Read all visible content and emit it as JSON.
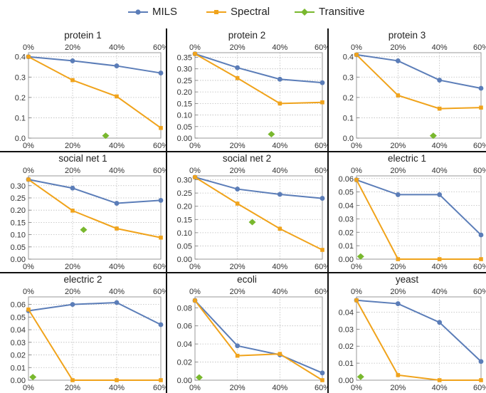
{
  "legend": [
    {
      "name": "MILS",
      "color": "#5b7db8",
      "marker": "circle"
    },
    {
      "name": "Spectral",
      "color": "#f0a31b",
      "marker": "square"
    },
    {
      "name": "Transitive",
      "color": "#79b82e",
      "marker": "diamond"
    }
  ],
  "chart_data": [
    {
      "type": "line",
      "title": "protein 1",
      "x": [
        "0%",
        "20%",
        "40%",
        "60%"
      ],
      "ylim": [
        0,
        0.42
      ],
      "yticks": [
        "0.0",
        "0.1",
        "0.2",
        "0.3",
        "0.4"
      ],
      "ytick_values": [
        0,
        0.1,
        0.2,
        0.3,
        0.4
      ],
      "series": [
        {
          "name": "MILS",
          "values": [
            0.4,
            0.38,
            0.355,
            0.32
          ]
        },
        {
          "name": "Spectral",
          "values": [
            0.4,
            0.285,
            0.205,
            0.05
          ]
        }
      ],
      "transitive": {
        "x": "35%",
        "y": 0.012
      }
    },
    {
      "type": "line",
      "title": "protein 2",
      "x": [
        "0%",
        "20%",
        "40%",
        "60%"
      ],
      "ylim": [
        0,
        0.37
      ],
      "yticks": [
        "0.00",
        "0.05",
        "0.10",
        "0.15",
        "0.20",
        "0.25",
        "0.30",
        "0.35"
      ],
      "ytick_values": [
        0,
        0.05,
        0.1,
        0.15,
        0.2,
        0.25,
        0.3,
        0.35
      ],
      "series": [
        {
          "name": "MILS",
          "values": [
            0.365,
            0.305,
            0.255,
            0.24
          ]
        },
        {
          "name": "Spectral",
          "values": [
            0.365,
            0.26,
            0.15,
            0.155
          ]
        }
      ],
      "transitive": {
        "x": "36%",
        "y": 0.017
      }
    },
    {
      "type": "line",
      "title": "protein 3",
      "x": [
        "0%",
        "20%",
        "40%",
        "60%"
      ],
      "ylim": [
        0,
        0.42
      ],
      "yticks": [
        "0.0",
        "0.1",
        "0.2",
        "0.3",
        "0.4"
      ],
      "ytick_values": [
        0,
        0.1,
        0.2,
        0.3,
        0.4
      ],
      "series": [
        {
          "name": "MILS",
          "values": [
            0.41,
            0.38,
            0.285,
            0.245
          ]
        },
        {
          "name": "Spectral",
          "values": [
            0.41,
            0.21,
            0.145,
            0.15
          ]
        }
      ],
      "transitive": {
        "x": "37%",
        "y": 0.012
      }
    },
    {
      "type": "line",
      "title": "social net 1",
      "x": [
        "0%",
        "20%",
        "40%",
        "60%"
      ],
      "ylim": [
        0,
        0.34
      ],
      "yticks": [
        "0.00",
        "0.05",
        "0.10",
        "0.15",
        "0.20",
        "0.25",
        "0.30"
      ],
      "ytick_values": [
        0,
        0.05,
        0.1,
        0.15,
        0.2,
        0.25,
        0.3
      ],
      "series": [
        {
          "name": "MILS",
          "values": [
            0.325,
            0.29,
            0.228,
            0.24
          ]
        },
        {
          "name": "Spectral",
          "values": [
            0.325,
            0.198,
            0.125,
            0.088
          ]
        }
      ],
      "transitive": {
        "x": "25%",
        "y": 0.12
      }
    },
    {
      "type": "line",
      "title": "social net 2",
      "x": [
        "0%",
        "20%",
        "40%",
        "60%"
      ],
      "ylim": [
        0,
        0.315
      ],
      "yticks": [
        "0.00",
        "0.05",
        "0.10",
        "0.15",
        "0.20",
        "0.25",
        "0.30"
      ],
      "ytick_values": [
        0,
        0.05,
        0.1,
        0.15,
        0.2,
        0.25,
        0.3
      ],
      "series": [
        {
          "name": "MILS",
          "values": [
            0.31,
            0.265,
            0.245,
            0.23
          ]
        },
        {
          "name": "Spectral",
          "values": [
            0.31,
            0.21,
            0.115,
            0.035
          ]
        }
      ],
      "transitive": {
        "x": "27%",
        "y": 0.14
      }
    },
    {
      "type": "line",
      "title": "electric 1",
      "x": [
        "0%",
        "20%",
        "40%",
        "60%"
      ],
      "ylim": [
        0,
        0.062
      ],
      "yticks": [
        "0.00",
        "0.01",
        "0.02",
        "0.03",
        "0.04",
        "0.05",
        "0.06"
      ],
      "ytick_values": [
        0,
        0.01,
        0.02,
        0.03,
        0.04,
        0.05,
        0.06
      ],
      "series": [
        {
          "name": "MILS",
          "values": [
            0.059,
            0.048,
            0.048,
            0.018
          ]
        },
        {
          "name": "Spectral",
          "values": [
            0.059,
            0.0,
            0.0,
            0.0
          ]
        }
      ],
      "transitive": {
        "x": "2%",
        "y": 0.002
      }
    },
    {
      "type": "line",
      "title": "electric 2",
      "x": [
        "0%",
        "20%",
        "40%",
        "60%"
      ],
      "ylim": [
        0,
        0.066
      ],
      "yticks": [
        "0.00",
        "0.01",
        "0.02",
        "0.03",
        "0.04",
        "0.05",
        "0.06"
      ],
      "ytick_values": [
        0,
        0.01,
        0.02,
        0.03,
        0.04,
        0.05,
        0.06
      ],
      "series": [
        {
          "name": "MILS",
          "values": [
            0.055,
            0.06,
            0.0615,
            0.044
          ]
        },
        {
          "name": "Spectral",
          "values": [
            0.056,
            0.0,
            0.0,
            0.0
          ]
        }
      ],
      "transitive": {
        "x": "2%",
        "y": 0.0025
      }
    },
    {
      "type": "line",
      "title": "ecoli",
      "x": [
        "0%",
        "20%",
        "40%",
        "60%"
      ],
      "ylim": [
        0,
        0.092
      ],
      "yticks": [
        "0.00",
        "0.02",
        "0.04",
        "0.06",
        "0.08"
      ],
      "ytick_values": [
        0,
        0.02,
        0.04,
        0.06,
        0.08
      ],
      "series": [
        {
          "name": "MILS",
          "values": [
            0.088,
            0.038,
            0.028,
            0.008
          ]
        },
        {
          "name": "Spectral",
          "values": [
            0.088,
            0.027,
            0.029,
            0.0
          ]
        }
      ],
      "transitive": {
        "x": "2%",
        "y": 0.003
      }
    },
    {
      "type": "line",
      "title": "yeast",
      "x": [
        "0%",
        "20%",
        "40%",
        "60%"
      ],
      "ylim": [
        0,
        0.049
      ],
      "yticks": [
        "0.00",
        "0.01",
        "0.02",
        "0.03",
        "0.04"
      ],
      "ytick_values": [
        0,
        0.01,
        0.02,
        0.03,
        0.04
      ],
      "series": [
        {
          "name": "MILS",
          "values": [
            0.047,
            0.045,
            0.034,
            0.011
          ]
        },
        {
          "name": "Spectral",
          "values": [
            0.047,
            0.003,
            0.0,
            0.0
          ]
        }
      ],
      "transitive": {
        "x": "2%",
        "y": 0.002
      }
    }
  ]
}
